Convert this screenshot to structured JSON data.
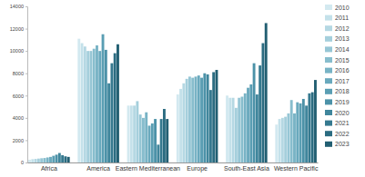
{
  "chart_data": {
    "type": "bar",
    "categories": [
      "Africa",
      "America",
      "Eastern Mediterranean",
      "Europe",
      "South-East Asia",
      "Western Pacific"
    ],
    "series": [
      {
        "name": "2010",
        "color": "#d3e9f0",
        "values": [
          250,
          11100,
          5100,
          6100,
          6000,
          3400
        ]
      },
      {
        "name": "2011",
        "color": "#c4e1ea",
        "values": [
          300,
          10700,
          5100,
          6600,
          5800,
          3900
        ]
      },
      {
        "name": "2012",
        "color": "#b5d8e3",
        "values": [
          320,
          10400,
          5100,
          7100,
          5800,
          4000
        ]
      },
      {
        "name": "2013",
        "color": "#a5cfdc",
        "values": [
          350,
          10000,
          5500,
          7500,
          4900,
          4100
        ]
      },
      {
        "name": "2014",
        "color": "#96c6d5",
        "values": [
          380,
          10000,
          4300,
          7700,
          5800,
          4400
        ]
      },
      {
        "name": "2015",
        "color": "#87bdcd",
        "values": [
          400,
          10200,
          4000,
          7600,
          5900,
          5600
        ]
      },
      {
        "name": "2016",
        "color": "#78b3c5",
        "values": [
          450,
          10500,
          4500,
          7700,
          6200,
          4400
        ]
      },
      {
        "name": "2017",
        "color": "#69a9bd",
        "values": [
          500,
          10000,
          3300,
          7800,
          6700,
          5400
        ]
      },
      {
        "name": "2018",
        "color": "#5a9eb3",
        "values": [
          600,
          11500,
          3500,
          7600,
          7000,
          5300
        ]
      },
      {
        "name": "2019",
        "color": "#4c92a8",
        "values": [
          700,
          10100,
          3900,
          8000,
          8900,
          5700
        ]
      },
      {
        "name": "2020",
        "color": "#40869c",
        "values": [
          850,
          7100,
          1600,
          7900,
          6100,
          5100
        ]
      },
      {
        "name": "2021",
        "color": "#35798f",
        "values": [
          650,
          8900,
          3900,
          6500,
          8700,
          6200
        ]
      },
      {
        "name": "2022",
        "color": "#2b6c81",
        "values": [
          550,
          9800,
          4800,
          8100,
          10700,
          6300
        ]
      },
      {
        "name": "2023",
        "color": "#225f72",
        "values": [
          500,
          10600,
          3900,
          8300,
          12500,
          7400
        ]
      }
    ],
    "ylim": [
      0,
      14000
    ],
    "yticks": [
      0,
      2000,
      4000,
      6000,
      8000,
      10000,
      12000,
      14000
    ],
    "grid": false,
    "legend": "right"
  }
}
